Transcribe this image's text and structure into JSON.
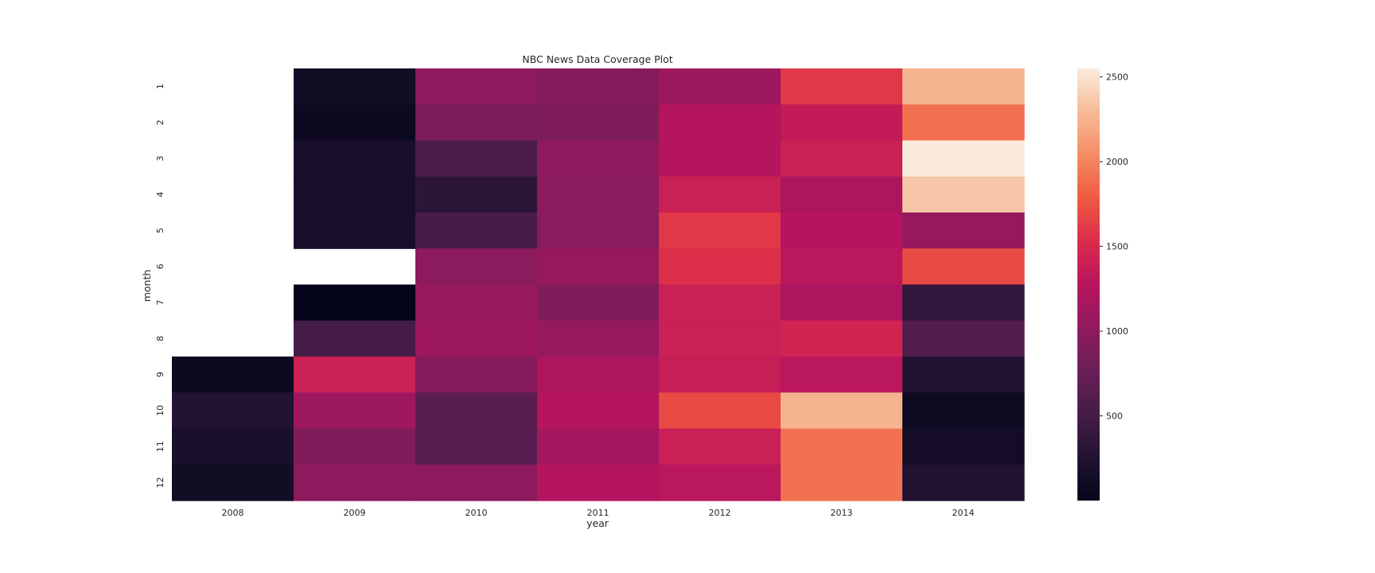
{
  "chart_data": {
    "type": "heatmap",
    "title": "NBC News Data Coverage Plot",
    "xlabel": "year",
    "ylabel": "month",
    "x_categories": [
      "2008",
      "2009",
      "2010",
      "2011",
      "2012",
      "2013",
      "2014"
    ],
    "y_categories": [
      "1",
      "2",
      "3",
      "4",
      "5",
      "6",
      "7",
      "8",
      "9",
      "10",
      "11",
      "12"
    ],
    "values": [
      [
        null,
        120,
        1000,
        950,
        1100,
        1600,
        2250
      ],
      [
        null,
        80,
        880,
        900,
        1250,
        1350,
        1900
      ],
      [
        null,
        180,
        550,
        1000,
        1250,
        1400,
        2550
      ],
      [
        null,
        180,
        330,
        980,
        1400,
        1200,
        2350
      ],
      [
        null,
        180,
        530,
        980,
        1600,
        1250,
        1050
      ],
      [
        null,
        null,
        980,
        1050,
        1550,
        1300,
        1700
      ],
      [
        null,
        20,
        1050,
        900,
        1400,
        1200,
        380
      ],
      [
        null,
        500,
        1100,
        1050,
        1400,
        1450,
        600
      ],
      [
        80,
        1400,
        950,
        1200,
        1380,
        1300,
        250
      ],
      [
        250,
        1100,
        650,
        1250,
        1700,
        2250,
        90
      ],
      [
        200,
        900,
        650,
        1150,
        1400,
        1900,
        150
      ],
      [
        120,
        1000,
        1000,
        1250,
        1300,
        1900,
        250
      ]
    ],
    "colorbar": {
      "min": 0,
      "max": 2550,
      "ticks": [
        500,
        1000,
        1500,
        2000,
        2500
      ]
    },
    "colormap": "rocket",
    "grid": false,
    "legend": "colorbar-right"
  }
}
